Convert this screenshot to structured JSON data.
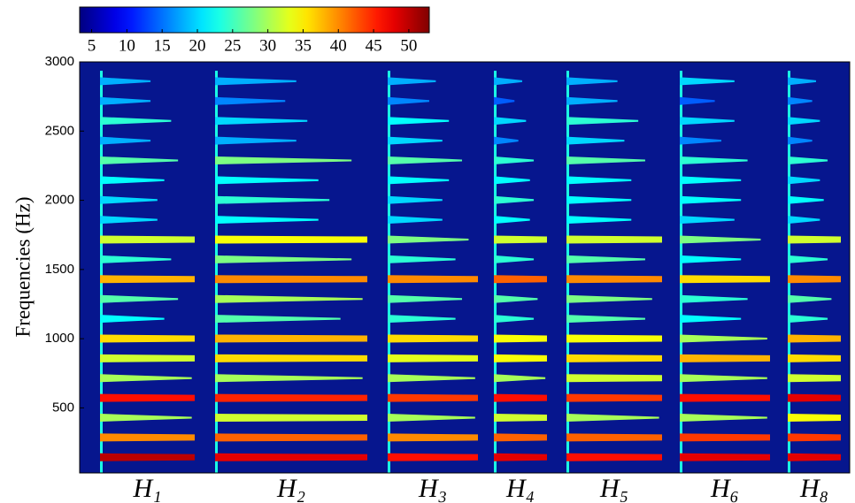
{
  "chart_data": {
    "type": "spectrogram",
    "ylabel": "Frequencies (Hz)",
    "ylim": [
      30,
      3000
    ],
    "yticks": [
      500,
      1000,
      1500,
      2000,
      2500,
      3000
    ],
    "colormap": "jet",
    "clim": [
      3.3,
      52.9
    ],
    "cticks": [
      5,
      10,
      15,
      20,
      25,
      30,
      35,
      40,
      45,
      50
    ],
    "segments": [
      {
        "label": "H₁",
        "f0": 143,
        "levels": [
          50,
          40,
          30,
          46,
          30,
          32,
          36,
          22,
          26,
          38,
          24,
          32,
          20,
          20,
          22,
          26,
          18,
          24,
          18,
          18
        ]
      },
      {
        "label": "H₂",
        "f0": 143,
        "levels": [
          48,
          42,
          32,
          45,
          30,
          36,
          38,
          26,
          30,
          40,
          28,
          34,
          22,
          24,
          22,
          28,
          18,
          20,
          16,
          18
        ]
      },
      {
        "label": "H₃",
        "f0": 143,
        "levels": [
          46,
          40,
          30,
          44,
          30,
          33,
          36,
          24,
          26,
          40,
          24,
          28,
          20,
          20,
          22,
          26,
          20,
          22,
          16,
          18
        ]
      },
      {
        "label": "H₄",
        "f0": 143,
        "levels": [
          48,
          42,
          32,
          46,
          30,
          34,
          34,
          24,
          26,
          42,
          24,
          32,
          22,
          24,
          22,
          24,
          16,
          20,
          14,
          18
        ]
      },
      {
        "label": "H₅",
        "f0": 143,
        "levels": [
          46,
          42,
          30,
          44,
          32,
          36,
          34,
          26,
          28,
          40,
          26,
          32,
          22,
          22,
          22,
          26,
          20,
          24,
          18,
          18
        ]
      },
      {
        "label": "H₆",
        "f0": 143,
        "levels": [
          48,
          44,
          30,
          46,
          30,
          38,
          30,
          22,
          24,
          36,
          22,
          28,
          20,
          22,
          22,
          24,
          16,
          20,
          14,
          20
        ]
      },
      {
        "label": "H₈",
        "f0": 143,
        "levels": [
          48,
          44,
          34,
          48,
          32,
          36,
          38,
          24,
          26,
          40,
          24,
          32,
          20,
          22,
          20,
          24,
          16,
          20,
          16,
          18
        ]
      }
    ]
  }
}
